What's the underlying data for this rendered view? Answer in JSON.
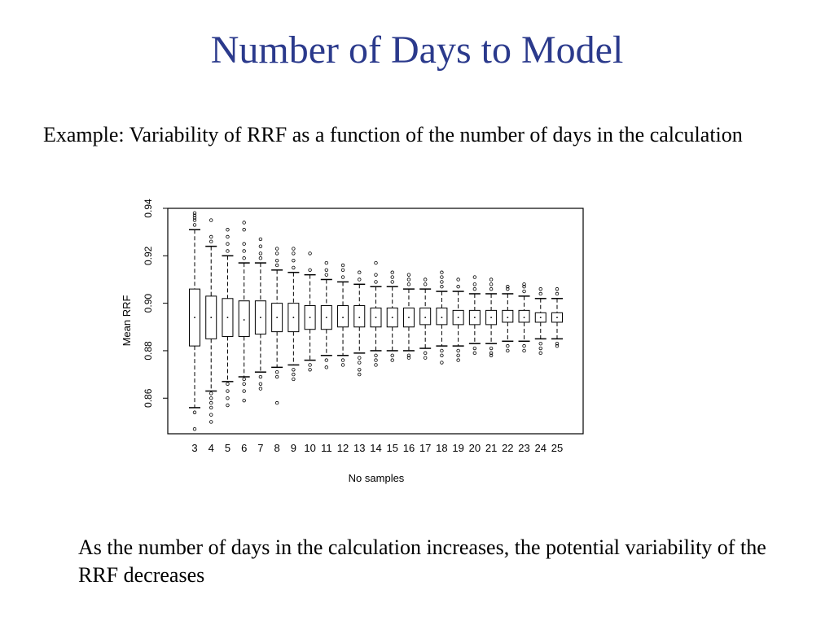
{
  "slide": {
    "title": "Number of Days to Model",
    "intro": "Example:  Variability of RRF as a function of the number of days in the calculation",
    "caption": "As the number of days in the calculation increases, the potential variability of the RRF decreases",
    "title_color": "#2b3a8c"
  },
  "chart_data": {
    "type": "boxplot",
    "xlabel": "No samples",
    "ylabel": "Mean RRF",
    "ylim": [
      0.845,
      0.94
    ],
    "yticks": [
      0.86,
      0.88,
      0.9,
      0.92,
      0.94
    ],
    "ytick_labels": [
      "0.86",
      "0.88",
      "0.90",
      "0.92",
      "0.94"
    ],
    "grid": false,
    "categories": [
      "3",
      "4",
      "5",
      "6",
      "7",
      "8",
      "9",
      "10",
      "11",
      "12",
      "13",
      "14",
      "15",
      "16",
      "17",
      "18",
      "19",
      "20",
      "21",
      "22",
      "23",
      "24",
      "25"
    ],
    "boxes": [
      {
        "lw": 0.856,
        "q1": 0.882,
        "med": 0.894,
        "q3": 0.906,
        "uw": 0.931,
        "outliers": [
          0.854,
          0.847,
          0.933,
          0.935,
          0.936,
          0.937,
          0.938
        ]
      },
      {
        "lw": 0.863,
        "q1": 0.885,
        "med": 0.894,
        "q3": 0.903,
        "uw": 0.924,
        "outliers": [
          0.862,
          0.86,
          0.858,
          0.856,
          0.853,
          0.85,
          0.926,
          0.928,
          0.935
        ]
      },
      {
        "lw": 0.867,
        "q1": 0.886,
        "med": 0.894,
        "q3": 0.902,
        "uw": 0.92,
        "outliers": [
          0.866,
          0.863,
          0.86,
          0.857,
          0.922,
          0.925,
          0.928,
          0.931
        ]
      },
      {
        "lw": 0.869,
        "q1": 0.886,
        "med": 0.893,
        "q3": 0.901,
        "uw": 0.917,
        "outliers": [
          0.868,
          0.866,
          0.863,
          0.859,
          0.919,
          0.922,
          0.925,
          0.931,
          0.934
        ]
      },
      {
        "lw": 0.871,
        "q1": 0.887,
        "med": 0.894,
        "q3": 0.901,
        "uw": 0.917,
        "outliers": [
          0.869,
          0.866,
          0.864,
          0.919,
          0.921,
          0.924,
          0.927
        ]
      },
      {
        "lw": 0.873,
        "q1": 0.888,
        "med": 0.894,
        "q3": 0.9,
        "uw": 0.914,
        "outliers": [
          0.871,
          0.869,
          0.858,
          0.916,
          0.918,
          0.921,
          0.923
        ]
      },
      {
        "lw": 0.874,
        "q1": 0.888,
        "med": 0.894,
        "q3": 0.9,
        "uw": 0.913,
        "outliers": [
          0.872,
          0.87,
          0.868,
          0.915,
          0.918,
          0.921,
          0.923
        ]
      },
      {
        "lw": 0.876,
        "q1": 0.889,
        "med": 0.894,
        "q3": 0.899,
        "uw": 0.912,
        "outliers": [
          0.874,
          0.872,
          0.914,
          0.921
        ]
      },
      {
        "lw": 0.878,
        "q1": 0.889,
        "med": 0.894,
        "q3": 0.899,
        "uw": 0.91,
        "outliers": [
          0.876,
          0.873,
          0.912,
          0.914,
          0.917
        ]
      },
      {
        "lw": 0.878,
        "q1": 0.89,
        "med": 0.894,
        "q3": 0.899,
        "uw": 0.909,
        "outliers": [
          0.876,
          0.874,
          0.911,
          0.914,
          0.916
        ]
      },
      {
        "lw": 0.879,
        "q1": 0.89,
        "med": 0.894,
        "q3": 0.899,
        "uw": 0.908,
        "outliers": [
          0.877,
          0.875,
          0.872,
          0.87,
          0.91,
          0.913
        ]
      },
      {
        "lw": 0.88,
        "q1": 0.89,
        "med": 0.894,
        "q3": 0.898,
        "uw": 0.907,
        "outliers": [
          0.878,
          0.876,
          0.874,
          0.909,
          0.912,
          0.917
        ]
      },
      {
        "lw": 0.88,
        "q1": 0.89,
        "med": 0.894,
        "q3": 0.898,
        "uw": 0.907,
        "outliers": [
          0.878,
          0.876,
          0.909,
          0.911,
          0.913
        ]
      },
      {
        "lw": 0.88,
        "q1": 0.89,
        "med": 0.894,
        "q3": 0.898,
        "uw": 0.906,
        "outliers": [
          0.878,
          0.877,
          0.908,
          0.91,
          0.912
        ]
      },
      {
        "lw": 0.881,
        "q1": 0.891,
        "med": 0.894,
        "q3": 0.898,
        "uw": 0.906,
        "outliers": [
          0.879,
          0.877,
          0.908,
          0.91
        ]
      },
      {
        "lw": 0.882,
        "q1": 0.891,
        "med": 0.894,
        "q3": 0.898,
        "uw": 0.905,
        "outliers": [
          0.88,
          0.878,
          0.875,
          0.907,
          0.909,
          0.911,
          0.913
        ]
      },
      {
        "lw": 0.882,
        "q1": 0.891,
        "med": 0.894,
        "q3": 0.897,
        "uw": 0.905,
        "outliers": [
          0.88,
          0.878,
          0.876,
          0.907,
          0.91
        ]
      },
      {
        "lw": 0.883,
        "q1": 0.891,
        "med": 0.894,
        "q3": 0.897,
        "uw": 0.904,
        "outliers": [
          0.881,
          0.879,
          0.906,
          0.908,
          0.911
        ]
      },
      {
        "lw": 0.883,
        "q1": 0.891,
        "med": 0.894,
        "q3": 0.897,
        "uw": 0.904,
        "outliers": [
          0.881,
          0.879,
          0.878,
          0.906,
          0.908,
          0.91
        ]
      },
      {
        "lw": 0.884,
        "q1": 0.892,
        "med": 0.894,
        "q3": 0.897,
        "uw": 0.904,
        "outliers": [
          0.882,
          0.88,
          0.906,
          0.907
        ]
      },
      {
        "lw": 0.884,
        "q1": 0.892,
        "med": 0.894,
        "q3": 0.897,
        "uw": 0.903,
        "outliers": [
          0.882,
          0.88,
          0.905,
          0.907,
          0.908
        ]
      },
      {
        "lw": 0.885,
        "q1": 0.892,
        "med": 0.894,
        "q3": 0.896,
        "uw": 0.902,
        "outliers": [
          0.883,
          0.881,
          0.879,
          0.904,
          0.906
        ]
      },
      {
        "lw": 0.885,
        "q1": 0.892,
        "med": 0.894,
        "q3": 0.896,
        "uw": 0.902,
        "outliers": [
          0.883,
          0.882,
          0.904,
          0.906
        ]
      }
    ]
  }
}
